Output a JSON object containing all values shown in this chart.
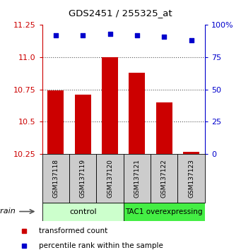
{
  "title": "GDS2451 / 255325_at",
  "samples": [
    "GSM137118",
    "GSM137119",
    "GSM137120",
    "GSM137121",
    "GSM137122",
    "GSM137123"
  ],
  "bar_values": [
    10.74,
    10.71,
    11.0,
    10.88,
    10.65,
    10.265
  ],
  "bar_bottom": 10.25,
  "percentile_values": [
    92,
    92,
    93,
    92,
    91,
    88
  ],
  "ylim_left": [
    10.25,
    11.25
  ],
  "ylim_right": [
    0,
    100
  ],
  "yticks_left": [
    10.25,
    10.5,
    10.75,
    11.0,
    11.25
  ],
  "yticks_right": [
    0,
    25,
    50,
    75,
    100
  ],
  "ytick_labels_right": [
    "0",
    "25",
    "50",
    "75",
    "100%"
  ],
  "bar_color": "#cc0000",
  "dot_color": "#0000cc",
  "bar_width": 0.6,
  "control_color": "#ccffcc",
  "tac1_color": "#44ee44",
  "strain_label": "strain",
  "legend_bar_label": "transformed count",
  "legend_dot_label": "percentile rank within the sample",
  "tick_color_left": "#cc0000",
  "tick_color_right": "#0000cc",
  "xlabel_area_color": "#cccccc",
  "dotted_line_color": "#555555",
  "fig_width": 3.41,
  "fig_height": 3.54,
  "dpi": 100
}
